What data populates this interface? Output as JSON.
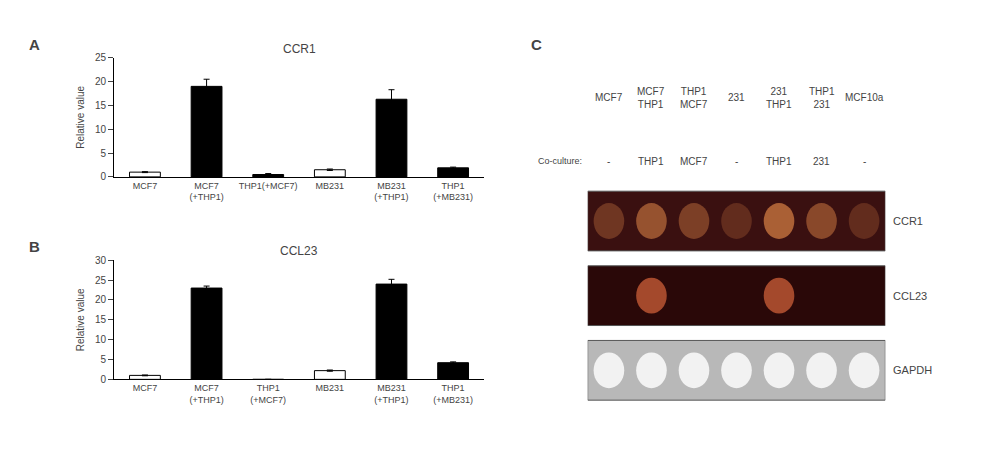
{
  "chart_data": [
    {
      "type": "bar",
      "title": "CCR1",
      "ylabel": "Relative value",
      "annotations": [
        "A"
      ],
      "categories": [
        "MCF7",
        "MCF7\n(+THP1)",
        "THP1(+MCF7)",
        "MB231",
        "MB231\n(+THP1)",
        "THP1\n(+MB231)"
      ],
      "values": [
        1.0,
        19.0,
        0.5,
        1.5,
        16.3,
        1.9
      ],
      "errors": [
        0.1,
        1.5,
        0.2,
        0.15,
        2.0,
        0.15
      ],
      "colors": [
        "white",
        "black",
        "black",
        "white",
        "black",
        "black"
      ],
      "ylim": [
        0,
        25
      ],
      "yticks": [
        0,
        5,
        10,
        15,
        20,
        25
      ],
      "grid": false
    },
    {
      "type": "bar",
      "title": "CCL23",
      "ylabel": "Relative value",
      "annotations": [
        "B"
      ],
      "categories": [
        "MCF7",
        "MCF7\n(+THP1)",
        "THP1\n(+MCF7)",
        "MB231",
        "MB231\n(+THP1)",
        "THP1\n(+MB231)"
      ],
      "values": [
        1.0,
        23.0,
        0.0,
        2.2,
        24.0,
        4.2
      ],
      "errors": [
        0.1,
        0.5,
        0.0,
        0.15,
        1.2,
        0.2
      ],
      "colors": [
        "white",
        "black",
        "white",
        "white",
        "black",
        "black"
      ],
      "ylim": [
        0,
        30
      ],
      "yticks": [
        0,
        5,
        10,
        15,
        20,
        25,
        30
      ],
      "grid": false
    },
    {
      "type": "gel",
      "annotations": [
        "C"
      ],
      "categories": [
        "MCF7",
        "MCF7\nTHP1",
        "THP1\nMCF7",
        "231",
        "231\nTHP1",
        "THP1\n231",
        "MCF10a"
      ],
      "coculture": {
        "label": "Co-culture:",
        "texts": [
          "-",
          "THP1",
          "MCF7",
          "-",
          "THP1",
          "231",
          "-"
        ]
      },
      "rows": [
        "CCR1",
        "CCL23",
        "GAPDH"
      ],
      "cells": [
        [
          0.4,
          0.7,
          0.5,
          0.3,
          0.85,
          0.6,
          0.3
        ],
        [
          0.0,
          0.85,
          0.0,
          0.0,
          0.85,
          0.0,
          0.0
        ],
        [
          1.0,
          1.0,
          1.0,
          1.0,
          1.0,
          1.0,
          1.0
        ]
      ],
      "row_colors": [
        "#3a1010",
        "#2a0808",
        "#b8b8b8"
      ],
      "band_colors": [
        "#be6e3c",
        "#b95532",
        "#f2f2f2"
      ]
    }
  ]
}
